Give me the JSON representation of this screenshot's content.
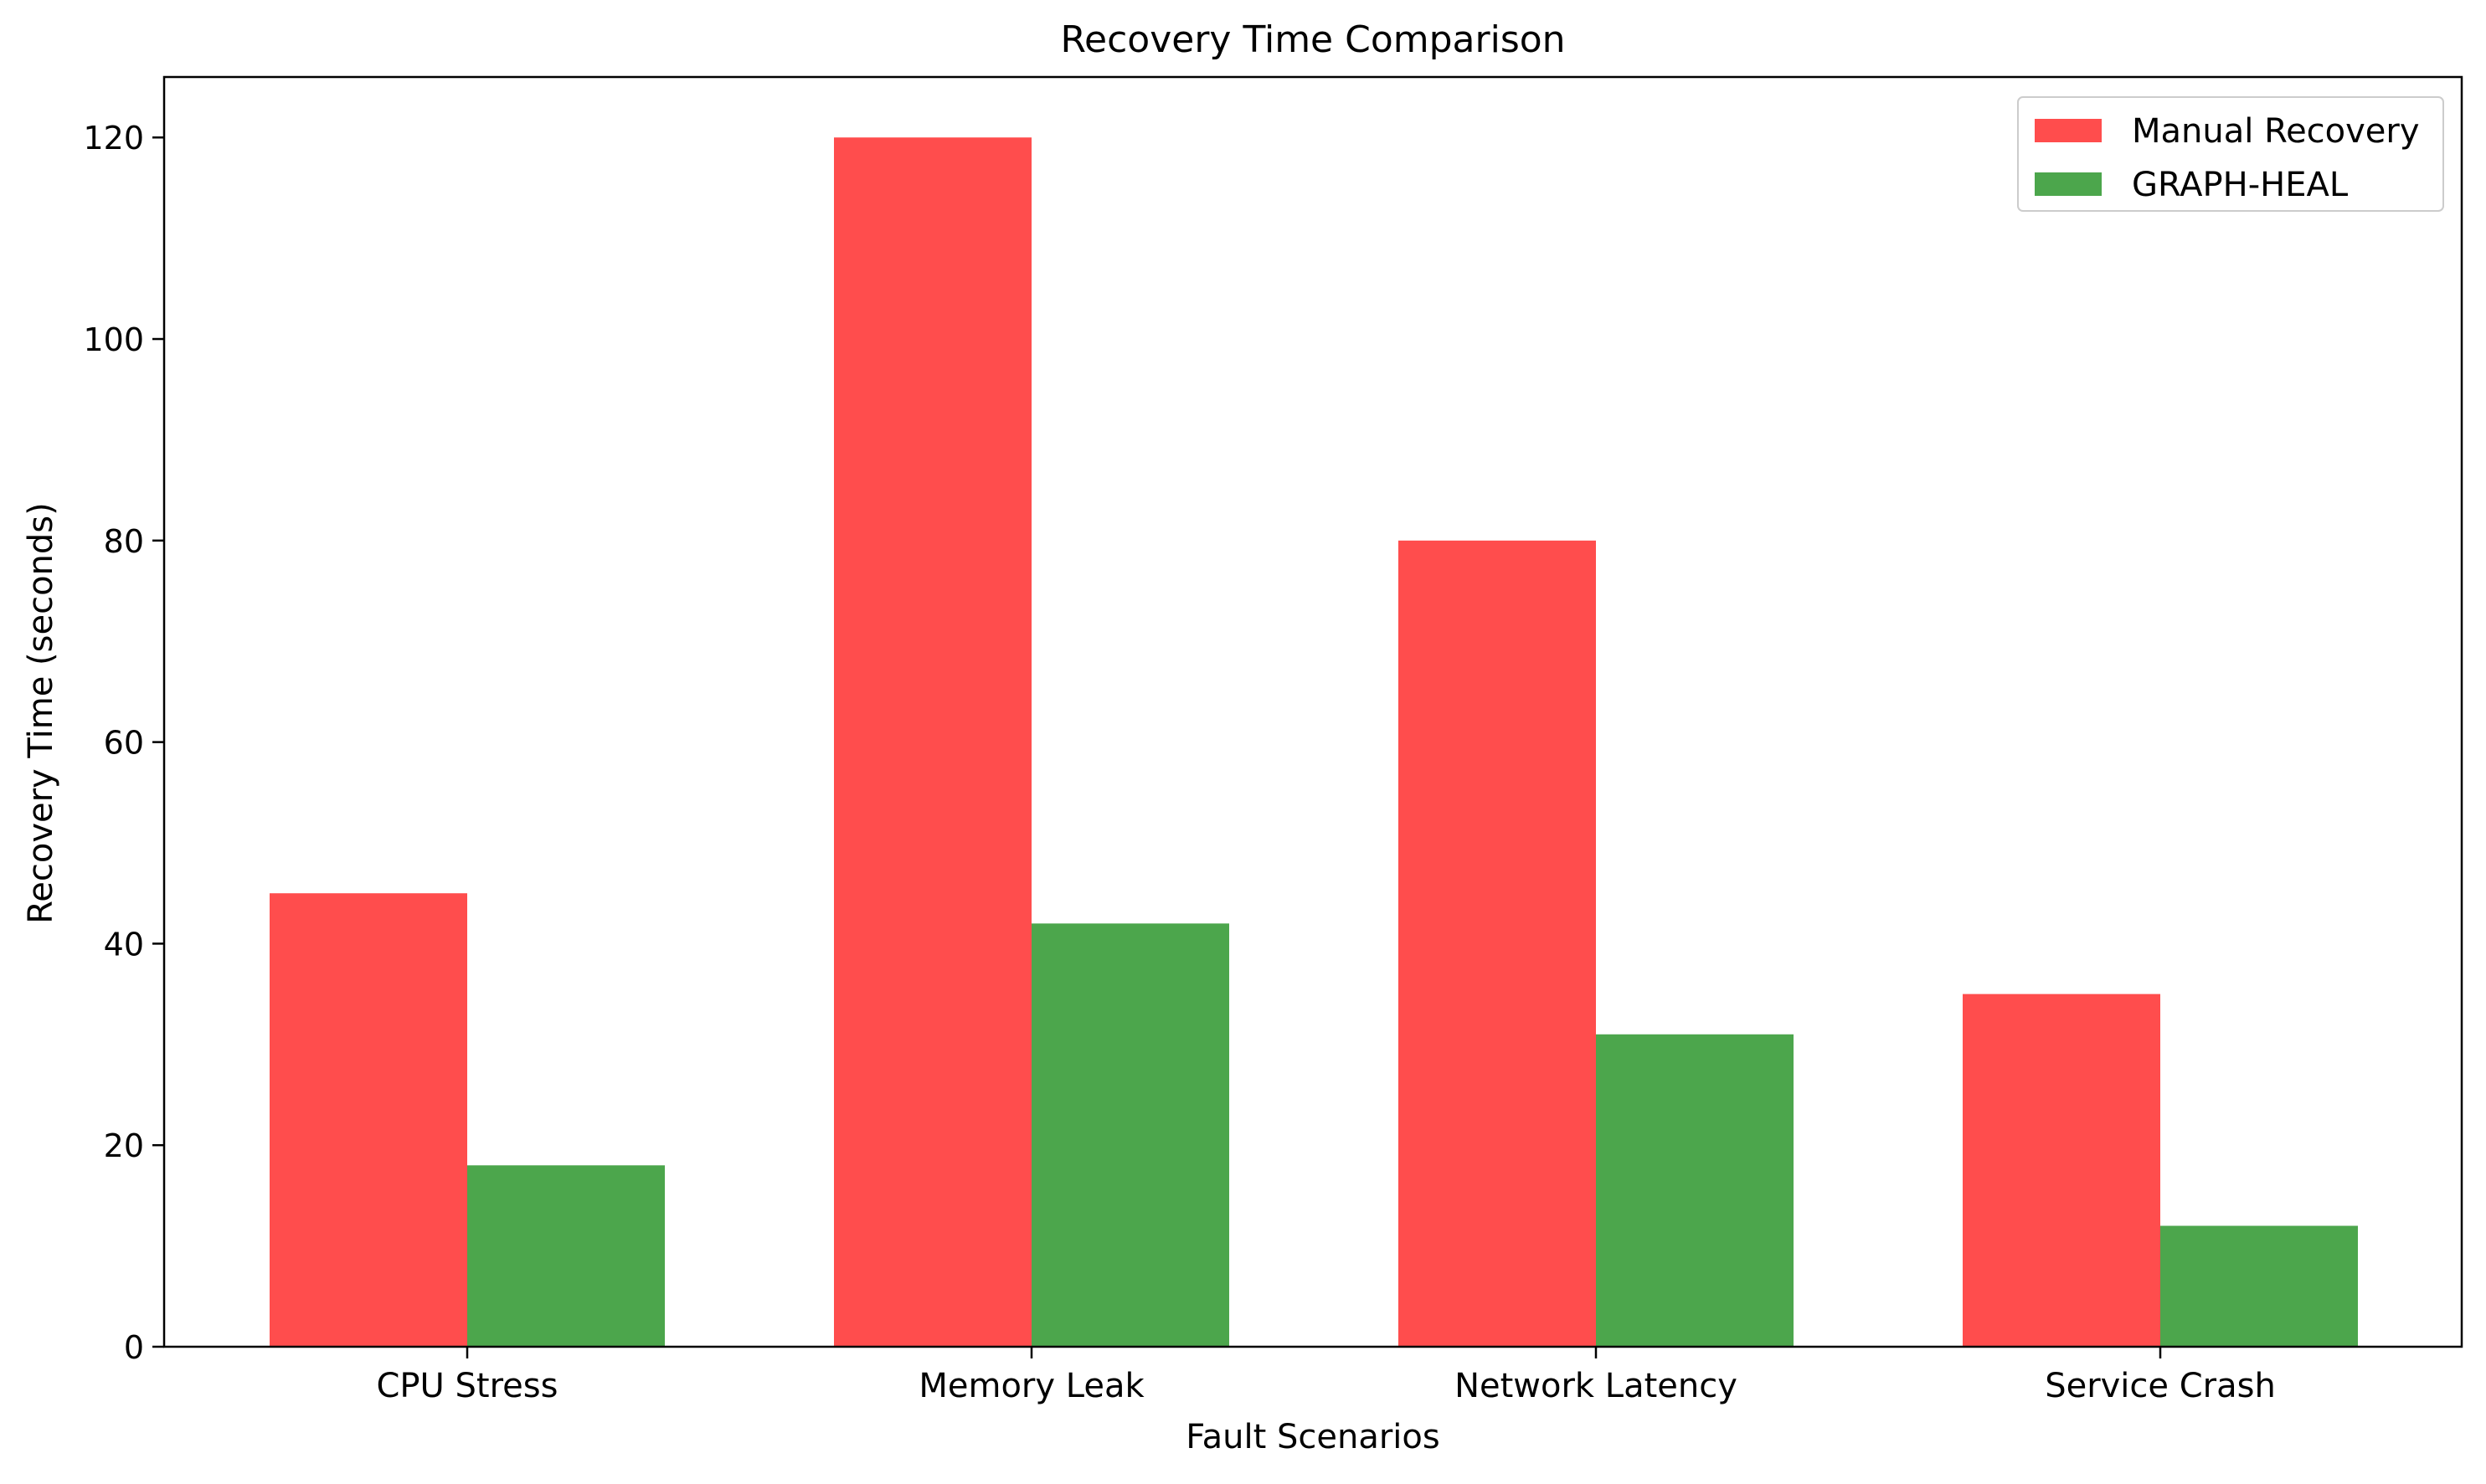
{
  "chart_data": {
    "type": "bar",
    "title": "Recovery Time Comparison",
    "xlabel": "Fault Scenarios",
    "ylabel": "Recovery Time (seconds)",
    "categories": [
      "CPU Stress",
      "Memory Leak",
      "Network Latency",
      "Service Crash"
    ],
    "series": [
      {
        "name": "Manual Recovery",
        "values": [
          45,
          120,
          80,
          35
        ],
        "color": "#ff4d4d"
      },
      {
        "name": "GRAPH-HEAL",
        "values": [
          18,
          42,
          31,
          12
        ],
        "color": "#4ca64c"
      }
    ],
    "ylim": [
      0,
      126
    ],
    "yticks": [
      0,
      20,
      40,
      60,
      80,
      100,
      120
    ],
    "grid": false,
    "legend_position": "top-right"
  }
}
